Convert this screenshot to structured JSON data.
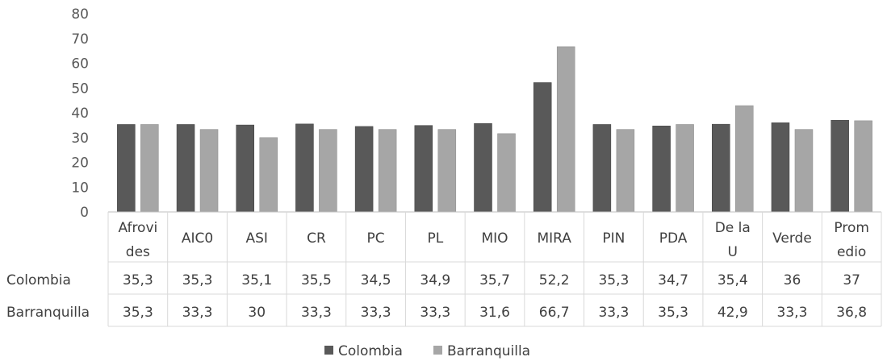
{
  "chart_data": {
    "type": "bar",
    "title": "",
    "xlabel": "",
    "ylabel": "",
    "ylim": [
      0,
      80
    ],
    "yticks": [
      0,
      10,
      20,
      30,
      40,
      50,
      60,
      70,
      80
    ],
    "grid": false,
    "legend": "bottom",
    "categories": [
      [
        "Afrovi",
        "des"
      ],
      [
        "AIC0"
      ],
      [
        "ASI"
      ],
      [
        "CR"
      ],
      [
        "PC"
      ],
      [
        "PL"
      ],
      [
        "MIO"
      ],
      [
        "MIRA"
      ],
      [
        "PIN"
      ],
      [
        "PDA"
      ],
      [
        "De la",
        "U"
      ],
      [
        "Verde"
      ],
      [
        "Prom",
        "edio"
      ]
    ],
    "series": [
      {
        "name": "Colombia",
        "color": "#595959",
        "values": [
          35.3,
          35.3,
          35.1,
          35.5,
          34.5,
          34.9,
          35.7,
          52.2,
          35.3,
          34.7,
          35.4,
          36,
          37
        ],
        "labels": [
          "35,3",
          "35,3",
          "35,1",
          "35,5",
          "34,5",
          "34,9",
          "35,7",
          "52,2",
          "35,3",
          "34,7",
          "35,4",
          "36",
          "37"
        ]
      },
      {
        "name": "Barranquilla",
        "color": "#a6a6a6",
        "values": [
          35.3,
          33.3,
          30,
          33.3,
          33.3,
          33.3,
          31.6,
          66.7,
          33.3,
          35.3,
          42.9,
          33.3,
          36.8
        ],
        "labels": [
          "35,3",
          "33,3",
          "30",
          "33,3",
          "33,3",
          "33,3",
          "31,6",
          "66,7",
          "33,3",
          "35,3",
          "42,9",
          "33,3",
          "36,8"
        ]
      }
    ]
  }
}
